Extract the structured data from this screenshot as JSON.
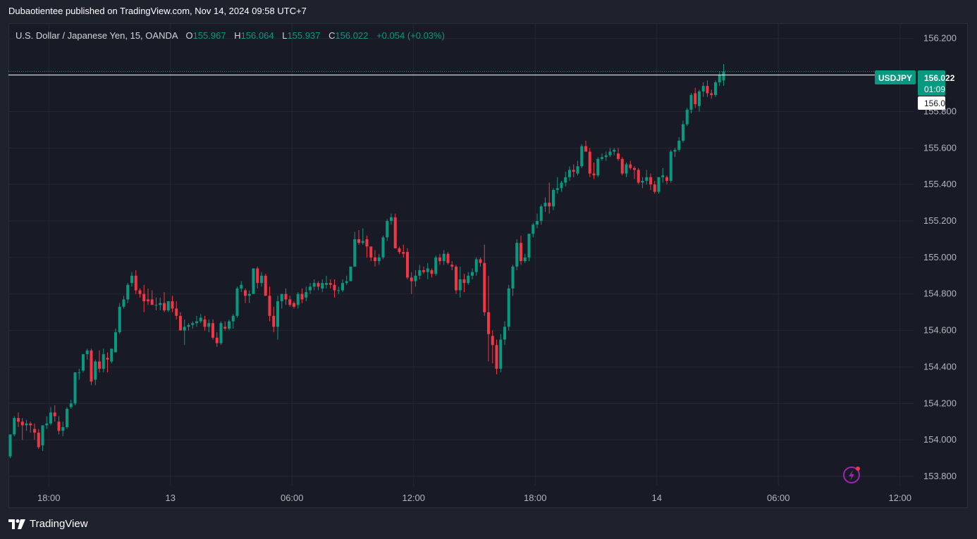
{
  "publisher_line": "Dubaotientee published on TradingView.com, Nov 14, 2024 09:58 UTC+7",
  "legend": {
    "symbol": "U.S. Dollar / Japanese Yen, 15, OANDA",
    "o_label": "O",
    "o": "155.967",
    "h_label": "H",
    "h": "156.064",
    "l_label": "L",
    "l": "155.937",
    "c_label": "C",
    "c": "156.022",
    "change": "+0.054 (+0.03%)"
  },
  "badges": {
    "symbol": "USDJPY",
    "price": "156.022",
    "countdown": "01:09",
    "line_price": "156.000"
  },
  "footer": {
    "brand": "TradingView"
  },
  "colors": {
    "up": "#089981",
    "down": "#f23645",
    "background": "#181b25",
    "grid": "#242833",
    "text": "#b2b5be"
  },
  "chart_data": {
    "type": "candlestick",
    "title": "U.S. Dollar / Japanese Yen, 15, OANDA",
    "ylim": [
      153.75,
      156.28
    ],
    "y_ticks": [
      "156.200",
      "155.800",
      "155.600",
      "155.400",
      "155.200",
      "155.000",
      "154.800",
      "154.600",
      "154.400",
      "154.200",
      "154.000",
      "153.800"
    ],
    "x_ticks": [
      "18:00",
      "13",
      "06:00",
      "12:00",
      "18:00",
      "14",
      "06:00",
      "12:00"
    ],
    "x_tick_slots": [
      9,
      39,
      69,
      99,
      129,
      159,
      189,
      219
    ],
    "horizontal_line": 156.0,
    "grid": true,
    "candles": [
      [
        153.91,
        154.03,
        153.9,
        154.03
      ],
      [
        154.03,
        154.13,
        154.02,
        154.12
      ],
      [
        154.12,
        154.15,
        154.07,
        154.1
      ],
      [
        154.1,
        154.12,
        154.0,
        154.08
      ],
      [
        154.08,
        154.11,
        154.05,
        154.09
      ],
      [
        154.09,
        154.1,
        154.04,
        154.08
      ],
      [
        154.06,
        154.09,
        154.0,
        154.04
      ],
      [
        154.04,
        154.06,
        153.95,
        153.96
      ],
      [
        153.97,
        154.08,
        153.94,
        154.08
      ],
      [
        154.08,
        154.13,
        154.06,
        154.09
      ],
      [
        154.09,
        154.18,
        154.08,
        154.15
      ],
      [
        154.15,
        154.19,
        154.1,
        154.13
      ],
      [
        154.1,
        154.13,
        154.03,
        154.05
      ],
      [
        154.05,
        154.1,
        154.02,
        154.07
      ],
      [
        154.07,
        154.18,
        154.06,
        154.17
      ],
      [
        154.18,
        154.22,
        154.17,
        154.2
      ],
      [
        154.2,
        154.37,
        154.19,
        154.37
      ],
      [
        154.37,
        154.39,
        154.33,
        154.37
      ],
      [
        154.38,
        154.47,
        154.37,
        154.47
      ],
      [
        154.47,
        154.5,
        154.44,
        154.49
      ],
      [
        154.49,
        154.5,
        154.3,
        154.32
      ],
      [
        154.33,
        154.44,
        154.3,
        154.43
      ],
      [
        154.43,
        154.49,
        154.37,
        154.39
      ],
      [
        154.39,
        154.5,
        154.37,
        154.47
      ],
      [
        154.45,
        154.48,
        154.37,
        154.44
      ],
      [
        154.43,
        154.5,
        154.42,
        154.5
      ],
      [
        154.48,
        154.61,
        154.48,
        154.59
      ],
      [
        154.59,
        154.75,
        154.58,
        154.73
      ],
      [
        154.73,
        154.79,
        154.72,
        154.77
      ],
      [
        154.77,
        154.86,
        154.75,
        154.85
      ],
      [
        154.86,
        154.92,
        154.84,
        154.9
      ],
      [
        154.9,
        154.93,
        154.8,
        154.82
      ],
      [
        154.82,
        154.83,
        154.78,
        154.8
      ],
      [
        154.8,
        154.85,
        154.7,
        154.76
      ],
      [
        154.77,
        154.83,
        154.74,
        154.76
      ],
      [
        154.77,
        154.82,
        154.74,
        154.74
      ],
      [
        154.74,
        154.78,
        154.71,
        154.74
      ],
      [
        154.74,
        154.78,
        154.71,
        154.75
      ],
      [
        154.75,
        154.81,
        154.7,
        154.71
      ],
      [
        154.71,
        154.76,
        154.7,
        154.76
      ],
      [
        154.76,
        154.79,
        154.7,
        154.72
      ],
      [
        154.72,
        154.76,
        154.66,
        154.68
      ],
      [
        154.68,
        154.7,
        154.6,
        154.6
      ],
      [
        154.6,
        154.66,
        154.52,
        154.62
      ],
      [
        154.62,
        154.64,
        154.6,
        154.63
      ],
      [
        154.63,
        154.65,
        154.61,
        154.64
      ],
      [
        154.64,
        154.68,
        154.62,
        154.65
      ],
      [
        154.65,
        154.69,
        154.64,
        154.67
      ],
      [
        154.66,
        154.68,
        154.6,
        154.62
      ],
      [
        154.62,
        154.66,
        154.59,
        154.64
      ],
      [
        154.64,
        154.66,
        154.55,
        154.56
      ],
      [
        154.56,
        154.59,
        154.51,
        154.53
      ],
      [
        154.53,
        154.65,
        154.52,
        154.64
      ],
      [
        154.62,
        154.65,
        154.6,
        154.61
      ],
      [
        154.61,
        154.66,
        154.6,
        154.65
      ],
      [
        154.65,
        154.69,
        154.61,
        154.68
      ],
      [
        154.68,
        154.84,
        154.67,
        154.83
      ],
      [
        154.83,
        154.87,
        154.81,
        154.85
      ],
      [
        154.82,
        154.83,
        154.75,
        154.79
      ],
      [
        154.79,
        154.82,
        154.75,
        154.8
      ],
      [
        154.8,
        154.94,
        154.8,
        154.94
      ],
      [
        154.94,
        154.95,
        154.83,
        154.86
      ],
      [
        154.86,
        154.92,
        154.84,
        154.9
      ],
      [
        154.9,
        154.91,
        154.79,
        154.79
      ],
      [
        154.79,
        154.84,
        154.65,
        154.68
      ],
      [
        154.68,
        154.73,
        154.59,
        154.62
      ],
      [
        154.62,
        154.79,
        154.55,
        154.76
      ],
      [
        154.76,
        154.8,
        154.72,
        154.8
      ],
      [
        154.8,
        154.83,
        154.74,
        154.77
      ],
      [
        154.77,
        154.79,
        154.73,
        154.74
      ],
      [
        154.75,
        154.76,
        154.72,
        154.73
      ],
      [
        154.74,
        154.81,
        154.72,
        154.8
      ],
      [
        154.8,
        154.83,
        154.75,
        154.77
      ],
      [
        154.78,
        154.84,
        154.76,
        154.81
      ],
      [
        154.82,
        154.86,
        154.8,
        154.84
      ],
      [
        154.84,
        154.88,
        154.82,
        154.86
      ],
      [
        154.86,
        154.87,
        154.82,
        154.84
      ],
      [
        154.83,
        154.88,
        154.81,
        154.86
      ],
      [
        154.85,
        154.9,
        154.83,
        154.86
      ],
      [
        154.86,
        154.88,
        154.83,
        154.85
      ],
      [
        154.85,
        154.88,
        154.78,
        154.82
      ],
      [
        154.82,
        154.84,
        154.8,
        154.82
      ],
      [
        154.82,
        154.88,
        154.81,
        154.86
      ],
      [
        154.86,
        154.9,
        154.85,
        154.87
      ],
      [
        154.87,
        154.95,
        154.87,
        154.95
      ],
      [
        154.95,
        155.14,
        154.95,
        155.1
      ],
      [
        155.1,
        155.15,
        155.07,
        155.08
      ],
      [
        155.08,
        155.16,
        155.07,
        155.09
      ],
      [
        155.1,
        155.12,
        155.0,
        155.06
      ],
      [
        155.06,
        155.06,
        154.98,
        155.0
      ],
      [
        155.0,
        155.04,
        154.95,
        154.98
      ],
      [
        154.98,
        155.02,
        154.96,
        155.0
      ],
      [
        155.0,
        155.12,
        154.99,
        155.11
      ],
      [
        155.11,
        155.21,
        155.09,
        155.2
      ],
      [
        155.2,
        155.24,
        155.18,
        155.22
      ],
      [
        155.22,
        155.24,
        155.05,
        155.05
      ],
      [
        155.05,
        155.06,
        155.02,
        155.03
      ],
      [
        155.03,
        155.07,
        155.0,
        155.02
      ],
      [
        155.03,
        155.05,
        154.88,
        154.89
      ],
      [
        154.89,
        154.92,
        154.8,
        154.87
      ],
      [
        154.87,
        154.93,
        154.84,
        154.9
      ],
      [
        154.9,
        154.96,
        154.88,
        154.93
      ],
      [
        154.93,
        154.95,
        154.91,
        154.92
      ],
      [
        154.92,
        154.97,
        154.88,
        154.94
      ],
      [
        154.93,
        154.94,
        154.89,
        154.91
      ],
      [
        154.91,
        155.01,
        154.9,
        155.0
      ],
      [
        155.0,
        155.02,
        154.96,
        154.98
      ],
      [
        154.98,
        155.04,
        154.96,
        155.02
      ],
      [
        155.02,
        155.03,
        154.96,
        154.97
      ],
      [
        154.96,
        154.98,
        154.93,
        154.95
      ],
      [
        154.95,
        154.96,
        154.8,
        154.82
      ],
      [
        154.82,
        154.95,
        154.78,
        154.88
      ],
      [
        154.88,
        154.91,
        154.81,
        154.86
      ],
      [
        154.86,
        154.92,
        154.85,
        154.9
      ],
      [
        154.9,
        154.94,
        154.88,
        154.92
      ],
      [
        154.92,
        155.0,
        154.9,
        154.99
      ],
      [
        154.99,
        155.0,
        154.95,
        154.97
      ],
      [
        154.97,
        155.07,
        154.68,
        154.7
      ],
      [
        154.7,
        154.9,
        154.43,
        154.58
      ],
      [
        154.57,
        154.6,
        154.42,
        154.52
      ],
      [
        154.52,
        154.55,
        154.36,
        154.39
      ],
      [
        154.39,
        154.58,
        154.37,
        154.55
      ],
      [
        154.55,
        154.65,
        154.52,
        154.62
      ],
      [
        154.62,
        154.85,
        154.6,
        154.83
      ],
      [
        154.83,
        154.96,
        154.79,
        154.95
      ],
      [
        154.95,
        155.1,
        154.93,
        155.08
      ],
      [
        155.08,
        155.12,
        154.96,
        154.98
      ],
      [
        154.98,
        155.02,
        154.97,
        155.0
      ],
      [
        155.0,
        155.13,
        154.98,
        155.13
      ],
      [
        155.13,
        155.19,
        155.11,
        155.18
      ],
      [
        155.18,
        155.24,
        155.16,
        155.2
      ],
      [
        155.2,
        155.29,
        155.18,
        155.28
      ],
      [
        155.28,
        155.33,
        155.25,
        155.3
      ],
      [
        155.3,
        155.41,
        155.24,
        155.28
      ],
      [
        155.28,
        155.38,
        155.26,
        155.37
      ],
      [
        155.37,
        155.44,
        155.35,
        155.38
      ],
      [
        155.38,
        155.42,
        155.36,
        155.41
      ],
      [
        155.41,
        155.47,
        155.39,
        155.44
      ],
      [
        155.44,
        155.5,
        155.42,
        155.48
      ],
      [
        155.48,
        155.51,
        155.44,
        155.47
      ],
      [
        155.46,
        155.53,
        155.45,
        155.5
      ],
      [
        155.5,
        155.62,
        155.49,
        155.61
      ],
      [
        155.61,
        155.64,
        155.58,
        155.58
      ],
      [
        155.58,
        155.6,
        155.44,
        155.46
      ],
      [
        155.46,
        155.52,
        155.43,
        155.45
      ],
      [
        155.45,
        155.55,
        155.44,
        155.54
      ],
      [
        155.54,
        155.57,
        155.53,
        155.55
      ],
      [
        155.55,
        155.58,
        155.53,
        155.56
      ],
      [
        155.56,
        155.6,
        155.55,
        155.58
      ],
      [
        155.58,
        155.6,
        155.56,
        155.59
      ],
      [
        155.57,
        155.6,
        155.53,
        155.54
      ],
      [
        155.54,
        155.55,
        155.45,
        155.46
      ],
      [
        155.46,
        155.52,
        155.44,
        155.51
      ],
      [
        155.51,
        155.53,
        155.48,
        155.49
      ],
      [
        155.49,
        155.5,
        155.43,
        155.48
      ],
      [
        155.48,
        155.49,
        155.4,
        155.41
      ],
      [
        155.41,
        155.44,
        155.38,
        155.42
      ],
      [
        155.42,
        155.48,
        155.4,
        155.44
      ],
      [
        155.44,
        155.46,
        155.37,
        155.4
      ],
      [
        155.4,
        155.42,
        155.35,
        155.36
      ],
      [
        155.36,
        155.42,
        155.35,
        155.44
      ],
      [
        155.44,
        155.49,
        155.41,
        155.45
      ],
      [
        155.44,
        155.45,
        155.4,
        155.42
      ],
      [
        155.42,
        155.59,
        155.41,
        155.58
      ],
      [
        155.58,
        155.6,
        155.55,
        155.59
      ],
      [
        155.59,
        155.66,
        155.58,
        155.64
      ],
      [
        155.64,
        155.75,
        155.63,
        155.73
      ],
      [
        155.73,
        155.82,
        155.72,
        155.81
      ],
      [
        155.81,
        155.9,
        155.79,
        155.89
      ],
      [
        155.9,
        155.93,
        155.82,
        155.84
      ],
      [
        155.83,
        155.92,
        155.8,
        155.91
      ],
      [
        155.91,
        155.96,
        155.88,
        155.94
      ],
      [
        155.94,
        155.97,
        155.88,
        155.9
      ],
      [
        155.9,
        155.92,
        155.87,
        155.89
      ],
      [
        155.89,
        155.97,
        155.88,
        155.96
      ],
      [
        155.96,
        156.02,
        155.94,
        156.0
      ],
      [
        155.97,
        156.06,
        155.94,
        156.02
      ]
    ]
  }
}
